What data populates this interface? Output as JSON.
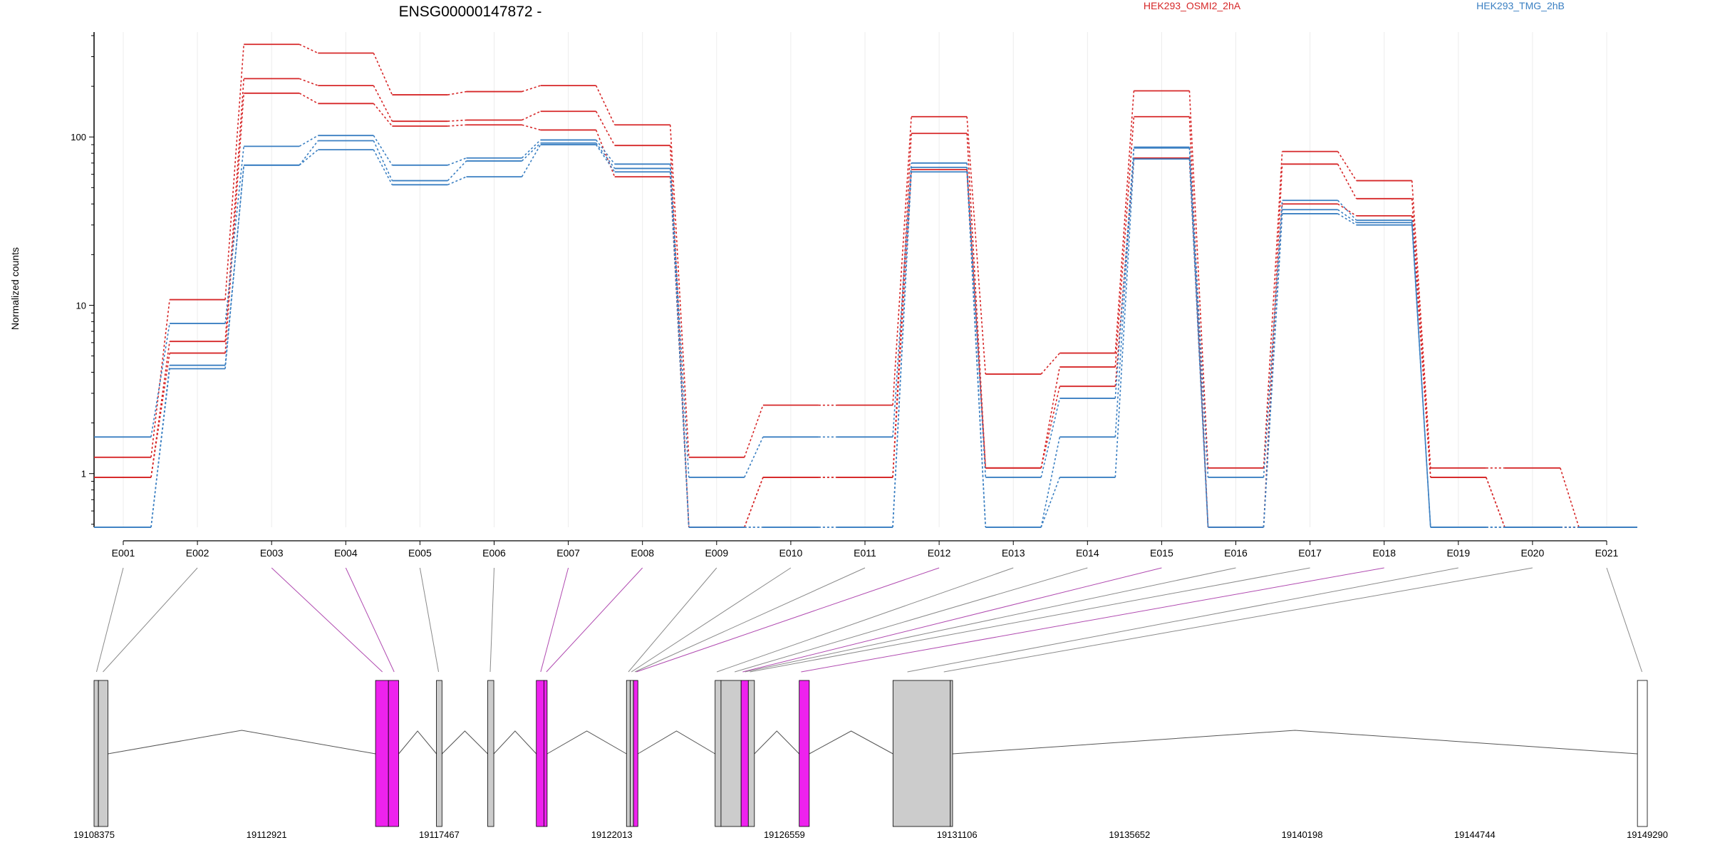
{
  "chart_data": {
    "type": "line",
    "title": "ENSG00000147872 -",
    "ylabel": "Normalized counts",
    "y_scale": "log",
    "y_ticks": [
      1,
      10,
      100
    ],
    "y_tick_labels": [
      "1",
      "10",
      "100"
    ],
    "ylim": [
      0.48,
      420
    ],
    "legend_placement": "top",
    "legend": [
      {
        "name": "HEK293_OSMI2_2hA",
        "color": "#d62728"
      },
      {
        "name": "HEK293_TMG_2hB",
        "color": "#3a7fc2"
      }
    ],
    "categories": [
      "E001",
      "E002",
      "E003",
      "E004",
      "E005",
      "E006",
      "E007",
      "E008",
      "E009",
      "E010",
      "E011",
      "E012",
      "E013",
      "E014",
      "E015",
      "E016",
      "E017",
      "E018",
      "E019",
      "E020",
      "E021"
    ],
    "series": [
      {
        "group": "HEK293_OSMI2_2hA",
        "color": "#d62728",
        "values": [
          1.25,
          10.8,
          355,
          315,
          178,
          186,
          202,
          118,
          1.25,
          2.55,
          2.55,
          132,
          3.9,
          5.2,
          188,
          1.08,
          82,
          55,
          1.08,
          1.08,
          0.48
        ]
      },
      {
        "group": "HEK293_OSMI2_2hA",
        "color": "#d62728",
        "values": [
          0.95,
          6.1,
          222,
          202,
          124,
          126,
          142,
          89,
          0.48,
          0.95,
          0.95,
          105,
          1.08,
          4.3,
          132,
          0.48,
          69,
          43,
          0.95,
          0.48,
          0.48
        ]
      },
      {
        "group": "HEK293_OSMI2_2hA",
        "color": "#d62728",
        "values": [
          0.95,
          5.2,
          182,
          158,
          116,
          118,
          110,
          58,
          0.48,
          0.95,
          0.95,
          64,
          1.08,
          3.3,
          75,
          0.48,
          40,
          34,
          0.95,
          0.48,
          0.48
        ]
      },
      {
        "group": "HEK293_TMG_2hB",
        "color": "#3a7fc2",
        "values": [
          1.65,
          7.8,
          88,
          102,
          68,
          75,
          96,
          69,
          0.95,
          1.65,
          1.65,
          70,
          0.95,
          2.8,
          87,
          0.95,
          42,
          32,
          0.48,
          0.48,
          0.48
        ]
      },
      {
        "group": "HEK293_TMG_2hB",
        "color": "#3a7fc2",
        "values": [
          0.48,
          4.4,
          68,
          95,
          55,
          72,
          92,
          65,
          0.48,
          0.48,
          0.48,
          66,
          0.48,
          1.65,
          86,
          0.48,
          37,
          31,
          0.48,
          0.48,
          0.48
        ]
      },
      {
        "group": "HEK293_TMG_2hB",
        "color": "#3a7fc2",
        "values": [
          0.48,
          4.2,
          68,
          84,
          52,
          58,
          90,
          62,
          0.48,
          0.48,
          0.48,
          62,
          0.48,
          0.95,
          74,
          0.48,
          35,
          30,
          0.48,
          0.48,
          0.48
        ]
      }
    ],
    "exon_highlight": [
      false,
      false,
      true,
      true,
      false,
      false,
      true,
      true,
      false,
      false,
      false,
      true,
      false,
      false,
      true,
      false,
      false,
      true,
      false,
      false,
      false
    ],
    "gene_model": {
      "coord_ticks": [
        "19108375",
        "19112921",
        "19117467",
        "19122013",
        "19126559",
        "19131106",
        "19135652",
        "19140198",
        "19144744",
        "19149290"
      ],
      "coord_tick_values": [
        19108375,
        19112921,
        19117467,
        19122013,
        19126559,
        19131106,
        19135652,
        19140198,
        19144744,
        19149290
      ],
      "exons": [
        {
          "start": 19108375,
          "end": 19108490,
          "fill": "#cccccc"
        },
        {
          "start": 19108490,
          "end": 19108740,
          "fill": "#cccccc"
        },
        {
          "start": 19115790,
          "end": 19116130,
          "fill": "#ee22ee"
        },
        {
          "start": 19116130,
          "end": 19116400,
          "fill": "#ee22ee"
        },
        {
          "start": 19117395,
          "end": 19117540,
          "fill": "#cccccc"
        },
        {
          "start": 19118745,
          "end": 19118905,
          "fill": "#cccccc"
        },
        {
          "start": 19120025,
          "end": 19120225,
          "fill": "#ee22ee"
        },
        {
          "start": 19120225,
          "end": 19120310,
          "fill": "#ee22ee"
        },
        {
          "start": 19122400,
          "end": 19122500,
          "fill": "#cccccc"
        },
        {
          "start": 19122500,
          "end": 19122585,
          "fill": "#cccccc"
        },
        {
          "start": 19122585,
          "end": 19122700,
          "fill": "#ee22ee"
        },
        {
          "start": 19124735,
          "end": 19124890,
          "fill": "#cccccc"
        },
        {
          "start": 19124890,
          "end": 19125420,
          "fill": "#cccccc"
        },
        {
          "start": 19125420,
          "end": 19125610,
          "fill": "#ee22ee"
        },
        {
          "start": 19125610,
          "end": 19125770,
          "fill": "#cccccc"
        },
        {
          "start": 19126950,
          "end": 19127215,
          "fill": "#ee22ee"
        },
        {
          "start": 19129420,
          "end": 19130930,
          "fill": "#cccccc"
        },
        {
          "start": 19130930,
          "end": 19130990,
          "fill": "#cccccc"
        },
        {
          "start": 19149030,
          "end": 19149290,
          "fill": "#ffffff"
        }
      ],
      "exon_map": [
        19108440,
        19108610,
        19115970,
        19116280,
        19117450,
        19118810,
        19120140,
        19120290,
        19122450,
        19122530,
        19122620,
        19122660,
        19124780,
        19125250,
        19125460,
        19125520,
        19125650,
        19127000,
        19129800,
        19130760,
        19149150
      ]
    }
  }
}
